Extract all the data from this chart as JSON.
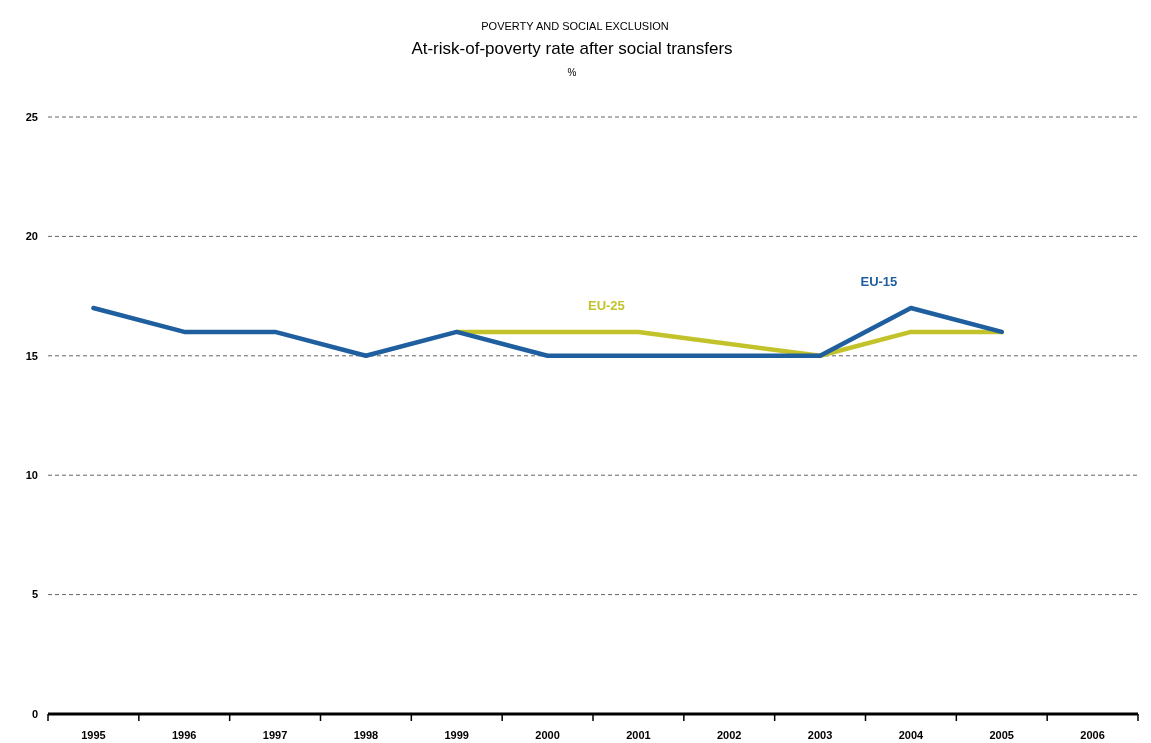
{
  "chart_data": {
    "type": "line",
    "subtitle": "POVERTY AND SOCIAL EXCLUSION",
    "title": "At-risk-of-poverty rate after social transfers",
    "ylabel": "%",
    "categories": [
      "1995",
      "1996",
      "1997",
      "1998",
      "1999",
      "2000",
      "2001",
      "2002",
      "2003",
      "2004",
      "2005",
      "2006"
    ],
    "series": [
      {
        "name": "EU-25",
        "color": "#c2c22a",
        "values": [
          null,
          null,
          null,
          null,
          16,
          16,
          16,
          null,
          15,
          16,
          16,
          null
        ]
      },
      {
        "name": "EU-15",
        "color": "#1f5f9f",
        "values": [
          17,
          16,
          16,
          15,
          16,
          15,
          15,
          15,
          15,
          17,
          16,
          null
        ]
      }
    ],
    "ylim": [
      0,
      25
    ],
    "yticks": [
      0,
      5,
      10,
      15,
      20,
      25
    ],
    "grid": "y",
    "marker": "none",
    "line_style": "solid"
  }
}
